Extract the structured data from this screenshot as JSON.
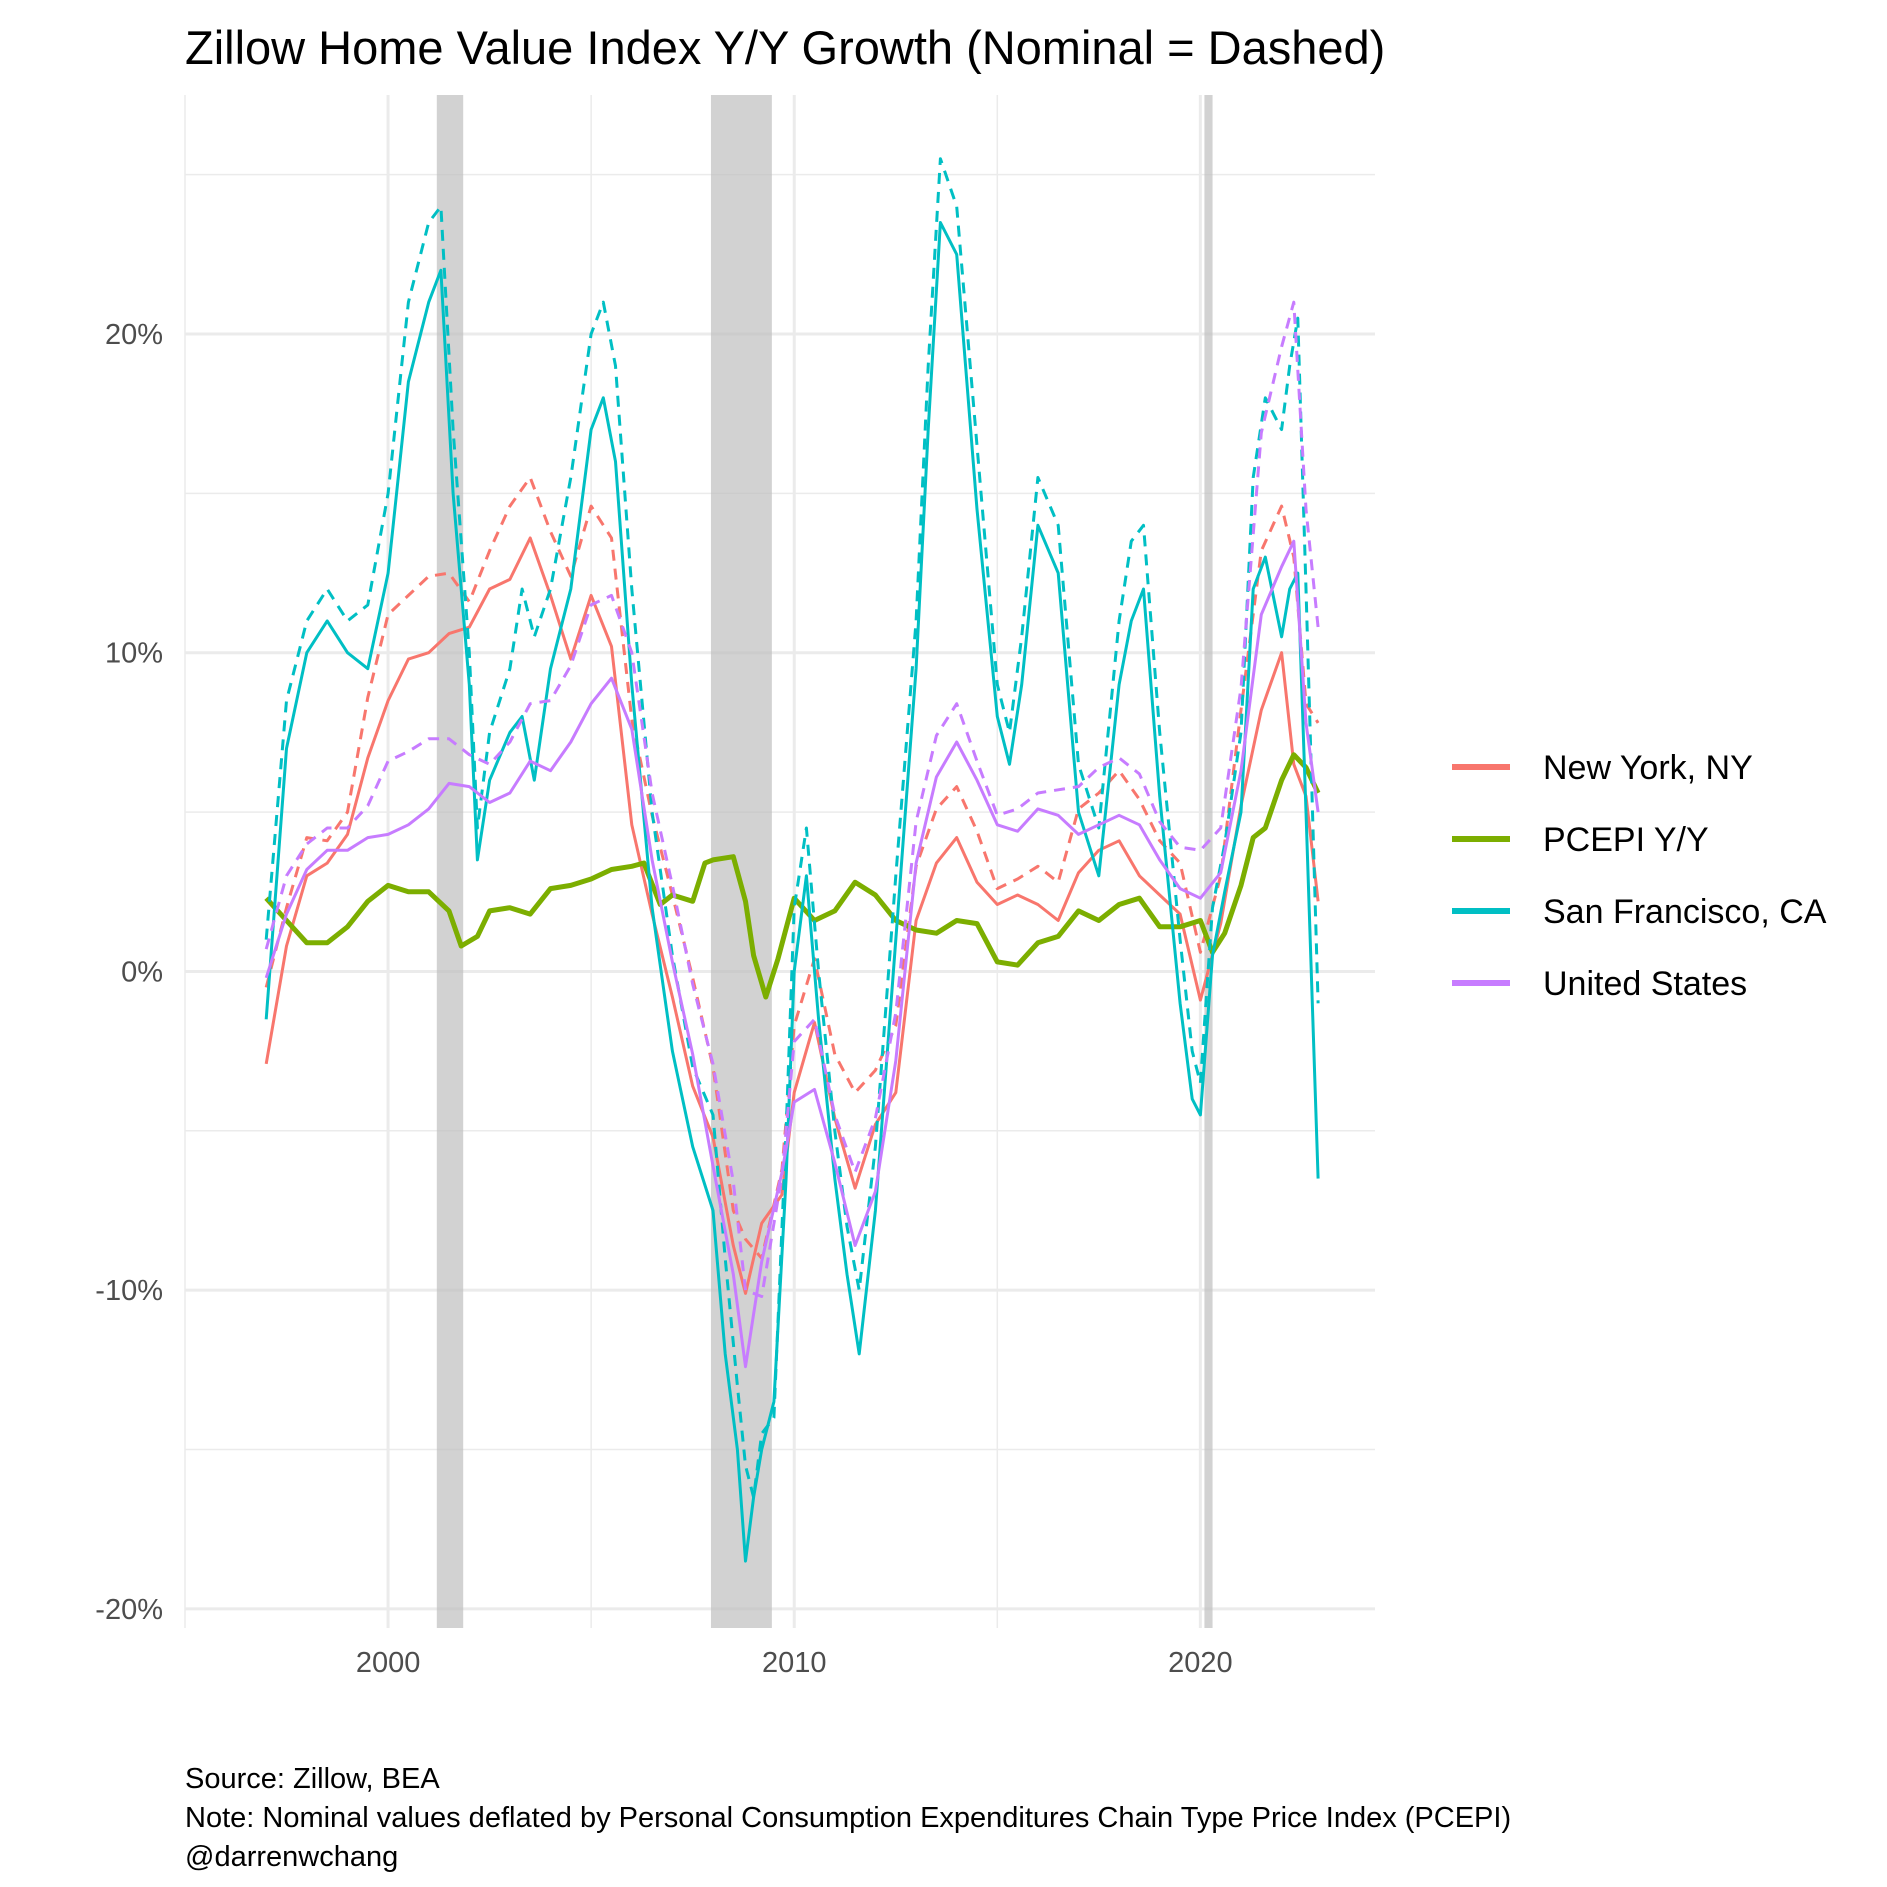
{
  "chart_data": {
    "type": "line",
    "title": "Zillow Home Value Index Y/Y Growth (Nominal = Dashed)",
    "xlabel": "",
    "ylabel": "",
    "xlim": [
      1995.0,
      2024.3
    ],
    "ylim": [
      -20.6,
      27.5
    ],
    "x_ticks": [
      2000,
      2010,
      2020
    ],
    "x_tick_labels": [
      "2000",
      "2010",
      "2020"
    ],
    "y_ticks": [
      -20,
      -10,
      0,
      10,
      20
    ],
    "y_tick_labels": [
      "-20%",
      "-10%",
      "0%",
      "10%",
      "20%"
    ],
    "grid": true,
    "legend_position": "right",
    "recessions": [
      [
        2001.2,
        2001.85
      ],
      [
        2007.95,
        2009.45
      ],
      [
        2020.1,
        2020.3
      ]
    ],
    "series": [
      {
        "name": "New York, NY",
        "color": "#F8766D",
        "real": {
          "x": [
            1997.0,
            1997.5,
            1998.0,
            1998.5,
            1999.0,
            1999.5,
            2000.0,
            2000.5,
            2001.0,
            2001.5,
            2002.0,
            2002.5,
            2003.0,
            2003.5,
            2004.0,
            2004.5,
            2005.0,
            2005.5,
            2006.0,
            2006.5,
            2007.0,
            2007.5,
            2008.0,
            2008.5,
            2008.8,
            2009.2,
            2009.7,
            2010.0,
            2010.5,
            2011.0,
            2011.5,
            2012.0,
            2012.5,
            2013.0,
            2013.5,
            2014.0,
            2014.5,
            2015.0,
            2015.5,
            2016.0,
            2016.5,
            2017.0,
            2017.5,
            2018.0,
            2018.5,
            2019.0,
            2019.5,
            2020.0,
            2020.5,
            2021.0,
            2021.5,
            2022.0,
            2022.3,
            2022.6,
            2022.9
          ],
          "y": [
            -2.9,
            0.8,
            3.0,
            3.4,
            4.3,
            6.7,
            8.5,
            9.8,
            10.0,
            10.6,
            10.8,
            12.0,
            12.3,
            13.6,
            11.8,
            9.8,
            11.8,
            10.2,
            4.6,
            1.8,
            -0.8,
            -3.6,
            -5.2,
            -8.6,
            -10.1,
            -7.9,
            -7.0,
            -3.8,
            -1.6,
            -4.6,
            -6.8,
            -4.8,
            -3.8,
            1.6,
            3.4,
            4.2,
            2.8,
            2.1,
            2.4,
            2.1,
            1.6,
            3.1,
            3.8,
            4.1,
            3.0,
            2.4,
            1.8,
            -0.9,
            1.5,
            5.2,
            8.2,
            10.0,
            6.5,
            5.5,
            2.2
          ]
        },
        "nominal": {
          "x": [
            1997.0,
            1997.5,
            1998.0,
            1998.5,
            1999.0,
            1999.5,
            2000.0,
            2000.5,
            2001.0,
            2001.5,
            2002.0,
            2002.5,
            2003.0,
            2003.5,
            2004.0,
            2004.5,
            2005.0,
            2005.5,
            2006.0,
            2006.5,
            2007.0,
            2007.5,
            2008.0,
            2008.5,
            2008.8,
            2009.2,
            2009.7,
            2010.0,
            2010.5,
            2011.0,
            2011.5,
            2012.0,
            2012.5,
            2013.0,
            2013.5,
            2014.0,
            2014.5,
            2015.0,
            2015.5,
            2016.0,
            2016.5,
            2017.0,
            2017.5,
            2018.0,
            2018.5,
            2019.0,
            2019.5,
            2020.0,
            2020.5,
            2021.0,
            2021.5,
            2022.0,
            2022.3,
            2022.6,
            2022.9
          ],
          "y": [
            -0.5,
            2.0,
            4.2,
            4.1,
            5.0,
            8.6,
            11.2,
            11.8,
            12.4,
            12.5,
            11.6,
            13.2,
            14.6,
            15.5,
            13.8,
            12.4,
            14.6,
            13.6,
            7.9,
            4.9,
            2.4,
            -0.2,
            -3.0,
            -7.5,
            -8.4,
            -9.0,
            -6.2,
            -1.7,
            0.4,
            -2.6,
            -3.8,
            -3.1,
            -1.7,
            3.3,
            5.1,
            5.8,
            4.4,
            2.6,
            2.9,
            3.3,
            2.8,
            5.1,
            5.6,
            6.3,
            5.4,
            4.1,
            3.4,
            0.6,
            3.0,
            8.2,
            13.2,
            14.6,
            13.0,
            8.4,
            7.8
          ]
        }
      },
      {
        "name": "PCEPI Y/Y",
        "color": "#7CAE00",
        "real": {
          "x": [
            1997.0,
            1997.5,
            1998.0,
            1998.5,
            1999.0,
            1999.5,
            2000.0,
            2000.5,
            2001.0,
            2001.5,
            2001.8,
            2002.2,
            2002.5,
            2003.0,
            2003.5,
            2004.0,
            2004.5,
            2005.0,
            2005.5,
            2006.0,
            2006.3,
            2006.7,
            2007.0,
            2007.5,
            2007.8,
            2008.0,
            2008.5,
            2008.8,
            2009.0,
            2009.3,
            2009.6,
            2010.0,
            2010.5,
            2011.0,
            2011.5,
            2012.0,
            2012.5,
            2013.0,
            2013.5,
            2014.0,
            2014.5,
            2015.0,
            2015.5,
            2016.0,
            2016.5,
            2017.0,
            2017.5,
            2018.0,
            2018.5,
            2019.0,
            2019.5,
            2020.0,
            2020.3,
            2020.6,
            2021.0,
            2021.3,
            2021.6,
            2022.0,
            2022.3,
            2022.6,
            2022.9
          ],
          "y": [
            2.3,
            1.6,
            0.9,
            0.9,
            1.4,
            2.2,
            2.7,
            2.5,
            2.5,
            1.9,
            0.8,
            1.1,
            1.9,
            2.0,
            1.8,
            2.6,
            2.7,
            2.9,
            3.2,
            3.3,
            3.4,
            2.1,
            2.4,
            2.2,
            3.4,
            3.5,
            3.6,
            2.2,
            0.5,
            -0.8,
            0.4,
            2.3,
            1.6,
            1.9,
            2.8,
            2.4,
            1.6,
            1.3,
            1.2,
            1.6,
            1.5,
            0.3,
            0.2,
            0.9,
            1.1,
            1.9,
            1.6,
            2.1,
            2.3,
            1.4,
            1.4,
            1.6,
            0.6,
            1.2,
            2.7,
            4.2,
            4.5,
            6.0,
            6.8,
            6.4,
            5.6
          ]
        }
      },
      {
        "name": "San Francisco, CA",
        "color": "#00BFC4",
        "real": {
          "x": [
            1997.0,
            1997.5,
            1998.0,
            1998.5,
            1999.0,
            1999.5,
            2000.0,
            2000.5,
            2001.0,
            2001.3,
            2001.6,
            2002.0,
            2002.2,
            2002.5,
            2003.0,
            2003.3,
            2003.6,
            2004.0,
            2004.5,
            2005.0,
            2005.3,
            2005.6,
            2006.0,
            2006.5,
            2007.0,
            2007.5,
            2008.0,
            2008.3,
            2008.6,
            2008.8,
            2009.0,
            2009.2,
            2009.5,
            2009.8,
            2010.0,
            2010.3,
            2010.6,
            2011.0,
            2011.3,
            2011.6,
            2012.0,
            2012.5,
            2013.0,
            2013.3,
            2013.6,
            2014.0,
            2014.5,
            2015.0,
            2015.3,
            2015.6,
            2016.0,
            2016.5,
            2017.0,
            2017.5,
            2018.0,
            2018.3,
            2018.6,
            2019.0,
            2019.5,
            2019.8,
            2020.0,
            2020.3,
            2020.6,
            2021.0,
            2021.3,
            2021.6,
            2022.0,
            2022.2,
            2022.4,
            2022.6,
            2022.9
          ],
          "y": [
            -1.5,
            7.0,
            10.0,
            11.0,
            10.0,
            9.5,
            12.5,
            18.5,
            21.0,
            22.0,
            15.0,
            9.0,
            3.5,
            6.0,
            7.5,
            8.0,
            6.0,
            9.5,
            12.0,
            17.0,
            18.0,
            16.0,
            9.0,
            2.0,
            -2.5,
            -5.5,
            -7.5,
            -12.0,
            -15.0,
            -18.5,
            -16.5,
            -15.0,
            -13.5,
            -6.5,
            0.0,
            3.0,
            -1.5,
            -6.5,
            -9.5,
            -12.0,
            -7.5,
            1.0,
            9.5,
            17.0,
            23.5,
            22.5,
            14.5,
            8.0,
            6.5,
            9.0,
            14.0,
            12.5,
            5.0,
            3.0,
            9.0,
            11.0,
            12.0,
            5.5,
            -1.0,
            -4.0,
            -4.5,
            0.5,
            2.5,
            5.0,
            12.0,
            13.0,
            10.5,
            12.0,
            12.5,
            5.0,
            -6.5
          ]
        },
        "nominal": {
          "x": [
            1997.0,
            1997.5,
            1998.0,
            1998.5,
            1999.0,
            1999.5,
            2000.0,
            2000.5,
            2001.0,
            2001.3,
            2001.6,
            2002.0,
            2002.2,
            2002.5,
            2003.0,
            2003.3,
            2003.6,
            2004.0,
            2004.5,
            2005.0,
            2005.3,
            2005.6,
            2006.0,
            2006.5,
            2007.0,
            2007.5,
            2008.0,
            2008.3,
            2008.6,
            2008.8,
            2009.0,
            2009.2,
            2009.5,
            2009.8,
            2010.0,
            2010.3,
            2010.6,
            2011.0,
            2011.3,
            2011.6,
            2012.0,
            2012.5,
            2013.0,
            2013.3,
            2013.6,
            2014.0,
            2014.5,
            2015.0,
            2015.3,
            2015.6,
            2016.0,
            2016.5,
            2017.0,
            2017.5,
            2018.0,
            2018.3,
            2018.6,
            2019.0,
            2019.5,
            2019.8,
            2020.0,
            2020.3,
            2020.6,
            2021.0,
            2021.3,
            2021.6,
            2022.0,
            2022.2,
            2022.4,
            2022.6,
            2022.9
          ],
          "y": [
            1.0,
            8.5,
            11.0,
            12.0,
            11.0,
            11.5,
            15.0,
            21.0,
            23.5,
            24.0,
            17.0,
            10.0,
            4.5,
            7.5,
            9.5,
            12.0,
            10.5,
            12.0,
            15.5,
            20.0,
            21.0,
            19.0,
            12.0,
            5.0,
            0.5,
            -3.0,
            -4.5,
            -9.0,
            -13.0,
            -15.5,
            -16.5,
            -14.5,
            -14.0,
            -5.0,
            2.0,
            4.5,
            0.0,
            -5.0,
            -8.0,
            -10.0,
            -5.5,
            3.0,
            11.0,
            19.0,
            25.5,
            24.0,
            16.5,
            9.0,
            7.5,
            10.5,
            15.5,
            14.0,
            6.5,
            4.5,
            11.0,
            13.5,
            14.0,
            7.5,
            1.0,
            -2.5,
            -3.5,
            2.0,
            4.0,
            7.5,
            15.5,
            18.0,
            17.0,
            19.0,
            20.5,
            12.0,
            -1.0
          ]
        }
      },
      {
        "name": "United States",
        "color": "#C77CFF",
        "real": {
          "x": [
            1997.0,
            1997.5,
            1998.0,
            1998.5,
            1999.0,
            1999.5,
            2000.0,
            2000.5,
            2001.0,
            2001.5,
            2002.0,
            2002.5,
            2003.0,
            2003.5,
            2004.0,
            2004.5,
            2005.0,
            2005.5,
            2006.0,
            2006.5,
            2007.0,
            2007.5,
            2008.0,
            2008.5,
            2008.8,
            2009.2,
            2009.7,
            2010.0,
            2010.5,
            2011.0,
            2011.5,
            2012.0,
            2012.5,
            2013.0,
            2013.5,
            2014.0,
            2014.5,
            2015.0,
            2015.5,
            2016.0,
            2016.5,
            2017.0,
            2017.5,
            2018.0,
            2018.5,
            2019.0,
            2019.5,
            2020.0,
            2020.5,
            2021.0,
            2021.5,
            2022.0,
            2022.3,
            2022.6,
            2022.9
          ],
          "y": [
            -0.2,
            1.8,
            3.2,
            3.8,
            3.8,
            4.2,
            4.3,
            4.6,
            5.1,
            5.9,
            5.8,
            5.3,
            5.6,
            6.6,
            6.3,
            7.2,
            8.4,
            9.2,
            7.6,
            3.5,
            0.3,
            -2.6,
            -6.1,
            -9.5,
            -12.4,
            -9.1,
            -6.3,
            -4.1,
            -3.7,
            -6.0,
            -8.6,
            -6.9,
            -2.8,
            3.4,
            6.1,
            7.2,
            6.0,
            4.6,
            4.4,
            5.1,
            4.9,
            4.3,
            4.6,
            4.9,
            4.6,
            3.5,
            2.6,
            2.3,
            3.1,
            6.3,
            11.2,
            12.7,
            13.5,
            7.8,
            5.0
          ]
        },
        "nominal": {
          "x": [
            1997.0,
            1997.5,
            1998.0,
            1998.5,
            1999.0,
            1999.5,
            2000.0,
            2000.5,
            2001.0,
            2001.5,
            2002.0,
            2002.5,
            2003.0,
            2003.5,
            2004.0,
            2004.5,
            2005.0,
            2005.5,
            2006.0,
            2006.5,
            2007.0,
            2007.5,
            2008.0,
            2008.5,
            2008.8,
            2009.2,
            2009.7,
            2010.0,
            2010.5,
            2011.0,
            2011.5,
            2012.0,
            2012.5,
            2013.0,
            2013.5,
            2014.0,
            2014.5,
            2015.0,
            2015.5,
            2016.0,
            2016.5,
            2017.0,
            2017.5,
            2018.0,
            2018.5,
            2019.0,
            2019.5,
            2020.0,
            2020.5,
            2021.0,
            2021.5,
            2022.0,
            2022.3,
            2022.6,
            2022.9
          ],
          "y": [
            0.7,
            3.0,
            4.0,
            4.5,
            4.5,
            5.2,
            6.6,
            6.9,
            7.3,
            7.3,
            6.8,
            6.5,
            7.2,
            8.4,
            8.5,
            9.6,
            11.5,
            11.8,
            10.0,
            5.6,
            2.7,
            -0.4,
            -2.9,
            -6.6,
            -10.0,
            -10.2,
            -6.4,
            -2.2,
            -1.5,
            -4.5,
            -6.3,
            -4.6,
            -1.3,
            4.7,
            7.4,
            8.4,
            6.6,
            4.9,
            5.1,
            5.6,
            5.7,
            5.8,
            6.4,
            6.7,
            6.2,
            4.7,
            3.9,
            3.8,
            4.5,
            8.9,
            16.9,
            19.6,
            21.0,
            14.5,
            10.8
          ]
        }
      }
    ]
  },
  "caption": {
    "source": "Source: Zillow, BEA",
    "note": "Note: Nominal values deflated by Personal Consumption Expenditures Chain Type Price Index (PCEPI)",
    "handle": "@darrenwchang"
  }
}
